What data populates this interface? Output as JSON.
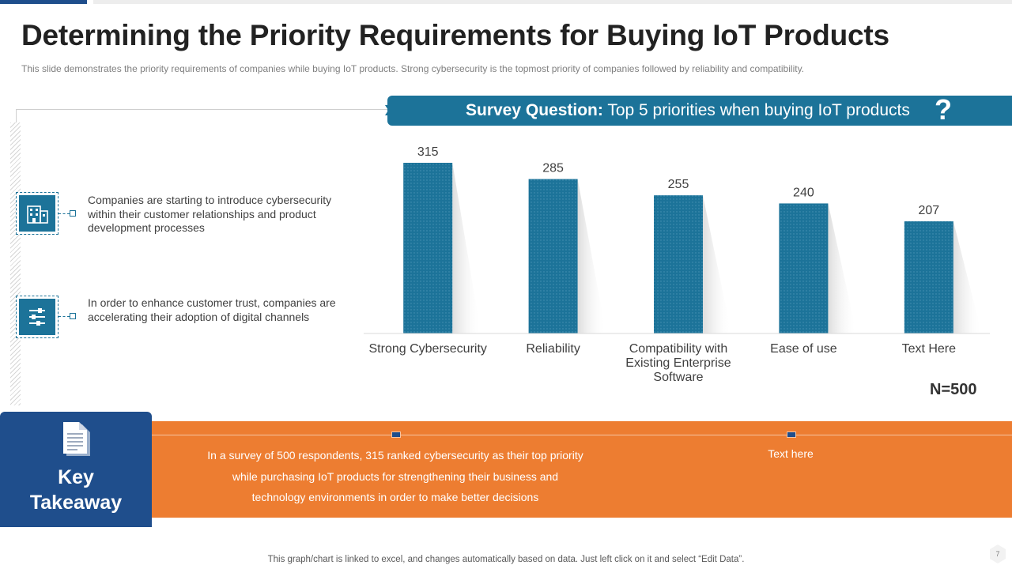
{
  "slide": {
    "title": "Determining the Priority Requirements for Buying IoT Products",
    "subtitle": "This slide demonstrates the priority requirements  of companies while buying IoT products. Strong cybersecurity is the topmost priority of companies followed by reliability and compatibility.",
    "footer": "This graph/chart is linked to excel,  and changes automatically based on data. Just left click on it and select “Edit Data”.",
    "page_number": "7"
  },
  "left_panel": {
    "points": [
      {
        "icon": "building-icon",
        "text": "Companies are starting to introduce cybersecurity within their customer relationships and product development processes"
      },
      {
        "icon": "sliders-icon",
        "text": "In order to enhance customer trust, companies are accelerating their adoption of digital channels"
      }
    ]
  },
  "survey": {
    "label": "Survey Question:",
    "question": " Top 5 priorities  when buying IoT products",
    "mark": "?",
    "sample": "N=500"
  },
  "key_takeaway": {
    "label_line1": "Key",
    "label_line2": "Takeaway",
    "text1": "In a survey of 500 respondents, 315 ranked cybersecurity as their top priority while purchasing IoT products for strengthening their business and technology environments in order to make better decisions",
    "text2": "Text here"
  },
  "colors": {
    "bar": "#1c7399",
    "accent_blue": "#1f4e8c",
    "orange": "#ed7d31"
  },
  "chart_data": {
    "type": "bar",
    "categories": [
      [
        "Strong Cybersecurity"
      ],
      [
        "Reliability"
      ],
      [
        "Compatibility with",
        "Existing Enterprise",
        "Software"
      ],
      [
        "Ease of use"
      ],
      [
        "Text Here"
      ]
    ],
    "values": [
      315,
      285,
      255,
      240,
      207
    ],
    "title": "Top 5 priorities  when buying IoT products",
    "xlabel": "",
    "ylabel": "",
    "ylim": [
      0,
      315
    ],
    "grid": false,
    "legend": "none"
  }
}
